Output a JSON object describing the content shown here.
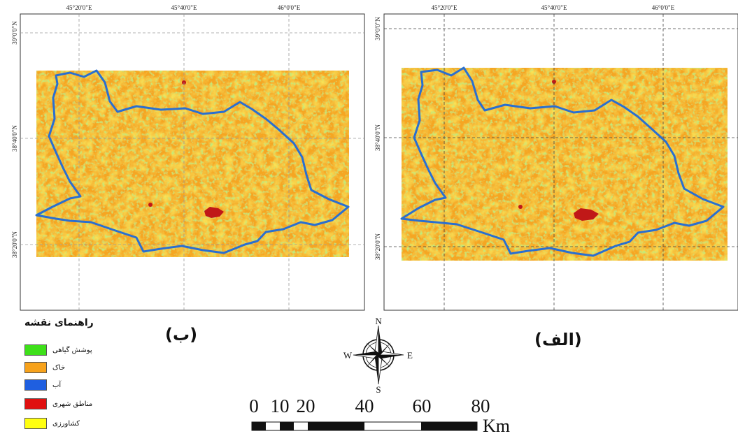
{
  "panels": {
    "left": {
      "label": "(ب)",
      "top_coords": [
        "45°20'0\"E",
        "45°40'0\"E",
        "46°0'0\"E"
      ],
      "side_coords": [
        "39°0'0\"N",
        "38°40'0\"N",
        "38°20'0\"N"
      ]
    },
    "right": {
      "label": "(الف)",
      "top_coords": [
        "45°20'0\"E",
        "45°40'0\"E",
        "46°0'0\"E"
      ],
      "side_coords": [
        "39°0'0\"N",
        "38°40'0\"N",
        "38°20'0\"N"
      ]
    }
  },
  "legend": {
    "title": "راهنمای نقشه",
    "items": [
      {
        "label": "پوشش گیاهی",
        "color": "#3ee01a"
      },
      {
        "label": "خاک",
        "color": "#f7a21b"
      },
      {
        "label": "آب",
        "color": "#1f5fe0"
      },
      {
        "label": "مناطق شهری",
        "color": "#e01010"
      },
      {
        "label": "کشاورزی",
        "color": "#ffff10"
      }
    ]
  },
  "scale_bar": {
    "ticks": [
      "0",
      "10",
      "20",
      "40",
      "60",
      "80"
    ],
    "unit": "Km"
  },
  "compass": {
    "n": "N",
    "s": "S",
    "e": "E",
    "w": "W"
  },
  "colors": {
    "boundary": "#2a6fd0",
    "soil": "#f5a623",
    "agri": "#f2d21a",
    "veg": "#8fd83a",
    "urban": "#c01818"
  }
}
